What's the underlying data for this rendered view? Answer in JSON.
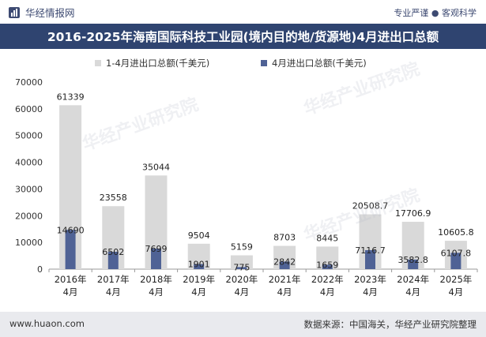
{
  "header": {
    "brand": "华经情报网",
    "tagline": "专业严谨 ● 客观科学"
  },
  "footer": {
    "site": "www.huaon.com",
    "source": "数据来源：中国海关，华经产业研究院整理"
  },
  "watermark": "华经产业研究院",
  "colors": {
    "title_band": "#2f4470",
    "series_total": "#d9d9d9",
    "series_april": "#4f6295",
    "brand_text": "#3d4a72"
  },
  "chart_data": {
    "type": "bar",
    "title": "2016-2025年海南国际科技工业园(境内目的地/货源地)4月进出口总额",
    "categories": [
      "2016年\n4月",
      "2017年\n4月",
      "2018年\n4月",
      "2019年\n4月",
      "2020年\n4月",
      "2021年\n4月",
      "2022年\n4月",
      "2023年\n4月",
      "2024年\n4月",
      "2025年\n4月"
    ],
    "series": [
      {
        "name": "1-4月进出口总额(千美元)",
        "values": [
          61339,
          23558,
          35044,
          9504,
          5159,
          8703,
          8445,
          20508.7,
          17706.9,
          10605.8
        ],
        "labels": [
          "61339",
          "23558",
          "35044",
          "9504",
          "5159",
          "8703",
          "8445",
          "20508.7",
          "17706.9",
          "10605.8"
        ]
      },
      {
        "name": "4月进出口总额(千美元)",
        "values": [
          14690,
          6502,
          7699,
          1901,
          775,
          2842,
          1659,
          7116.7,
          3582.8,
          6107.8
        ],
        "labels": [
          "14690",
          "6502",
          "7699",
          "1901",
          "775",
          "2842",
          "1659",
          "7116.7",
          "3582.8",
          "6107.8"
        ]
      }
    ],
    "ylim": [
      0,
      70000
    ],
    "yticks": [
      "0",
      "10000",
      "20000",
      "30000",
      "40000",
      "50000",
      "60000",
      "70000"
    ],
    "grid": false,
    "legend": "top-center"
  }
}
